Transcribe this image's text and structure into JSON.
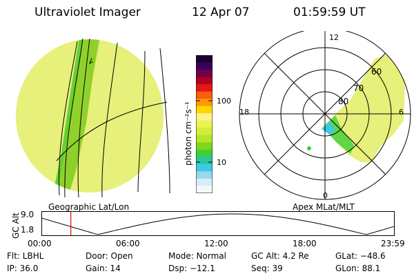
{
  "header": {
    "instrument": "Ultraviolet Imager",
    "date": "12 Apr 07",
    "time": "01:59:59 UT"
  },
  "colorbar": {
    "label": "photon cm⁻²s⁻¹",
    "ticks": [
      "100",
      "10"
    ],
    "colors": [
      "#1a0030",
      "#3a005a",
      "#70004a",
      "#b00020",
      "#e01818",
      "#ff5a10",
      "#ff9a00",
      "#ffd700",
      "#fff48a",
      "#ecf34f",
      "#d2ed3a",
      "#b4e52a",
      "#7fd61e",
      "#3fcf3b",
      "#28c6a2",
      "#3fc8e4",
      "#98d8ef",
      "#d8eef6",
      "#f4f8fb"
    ]
  },
  "geo_panel": {
    "caption": "Geographic Lat/Lon",
    "colors": {
      "fill": "#e6f07a",
      "dark": "#8fd12a"
    }
  },
  "polar_panel": {
    "caption": "Apex MLat/MLT",
    "mlt_labels": {
      "top": "12",
      "left": "18",
      "right": "6",
      "bottom": "0"
    },
    "lat_labels": [
      "60",
      "70",
      "80"
    ]
  },
  "altitude_plot": {
    "ylabel": "GC Alt",
    "yticks": [
      "9.0",
      "1.8"
    ],
    "xticks": [
      "00:00",
      "06:00",
      "12:00",
      "18:00",
      "23:59"
    ],
    "marker_time_hours": 2.0,
    "marker_color": "#e00000"
  },
  "info": {
    "flt": "Flt: LBHL",
    "door": "Door: Open",
    "mode": "Mode: Normal",
    "gc_alt": "GC Alt: 4.2 Re",
    "glat": "GLat: −48.6",
    "ip": "IP: 36.0",
    "gain": "Gain: 14",
    "dsp": "Dsp: −12.1",
    "seq": "Seq: 39",
    "glon": "GLon: 88.1"
  }
}
